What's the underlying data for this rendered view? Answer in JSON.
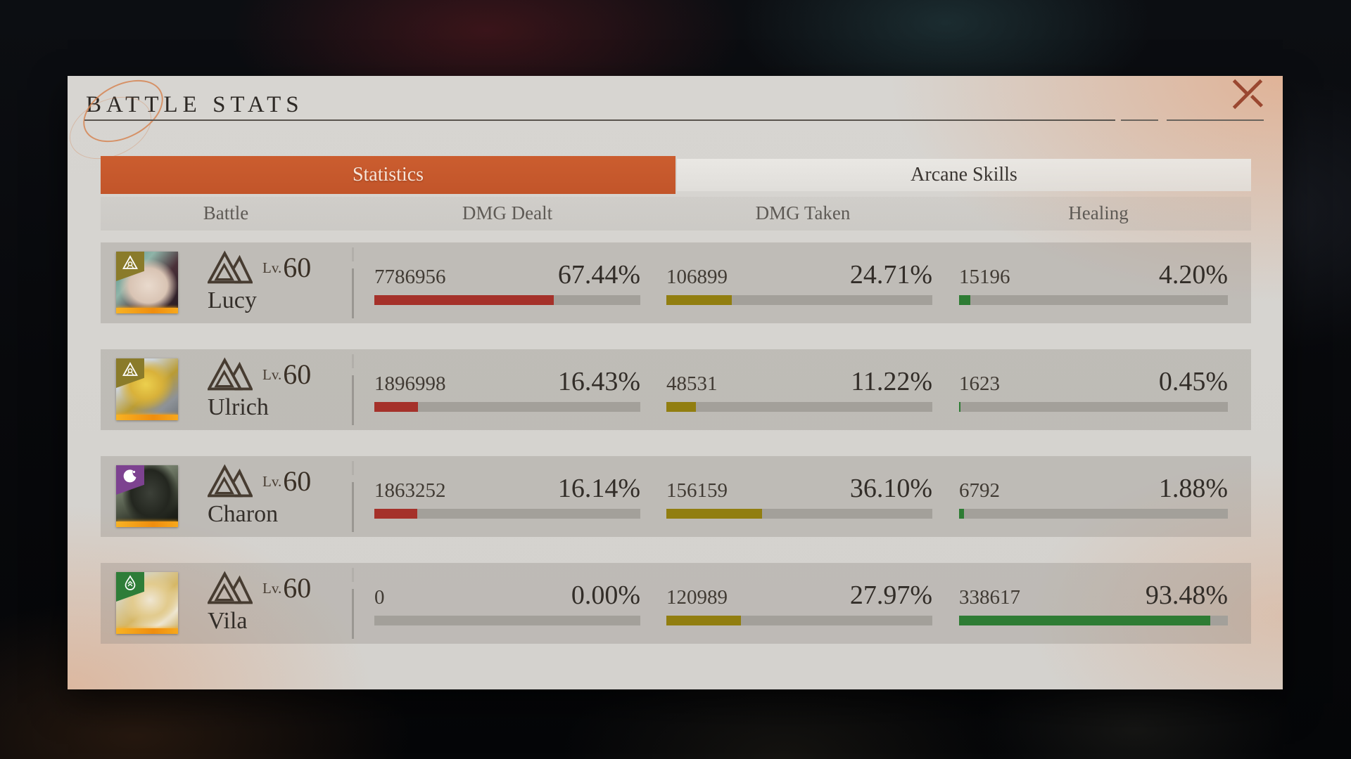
{
  "window": {
    "title": "BATTLE STATS"
  },
  "tabs": [
    {
      "label": "Statistics",
      "active": true
    },
    {
      "label": "Arcane Skills",
      "active": false
    }
  ],
  "columns": [
    "Battle",
    "DMG Dealt",
    "DMG Taken",
    "Healing"
  ],
  "stats_colors": {
    "dmg_dealt": "#a5312a",
    "dmg_taken": "#917e10",
    "healing": "#2e7c34",
    "bar_track": "#a3a09a",
    "tab_active": "#c75a2c",
    "close_icon": "#9a4730"
  },
  "rows": [
    {
      "name": "Lucy",
      "level_label": "Lv.",
      "level": "60",
      "avatar": "lucy",
      "element": {
        "icon": "delta",
        "color": "#8a7b2a"
      },
      "dmg_dealt": {
        "value": "7786956",
        "pct": "67.44%",
        "pct_num": 67.44
      },
      "dmg_taken": {
        "value": "106899",
        "pct": "24.71%",
        "pct_num": 24.71
      },
      "healing": {
        "value": "15196",
        "pct": "4.20%",
        "pct_num": 4.2
      }
    },
    {
      "name": "Ulrich",
      "level_label": "Lv.",
      "level": "60",
      "avatar": "ulrich",
      "element": {
        "icon": "delta",
        "color": "#8a7b2a"
      },
      "dmg_dealt": {
        "value": "1896998",
        "pct": "16.43%",
        "pct_num": 16.43
      },
      "dmg_taken": {
        "value": "48531",
        "pct": "11.22%",
        "pct_num": 11.22
      },
      "healing": {
        "value": "1623",
        "pct": "0.45%",
        "pct_num": 0.45
      }
    },
    {
      "name": "Charon",
      "level_label": "Lv.",
      "level": "60",
      "avatar": "charon",
      "element": {
        "icon": "lunar",
        "color": "#7d4290"
      },
      "dmg_dealt": {
        "value": "1863252",
        "pct": "16.14%",
        "pct_num": 16.14
      },
      "dmg_taken": {
        "value": "156159",
        "pct": "36.10%",
        "pct_num": 36.1
      },
      "healing": {
        "value": "6792",
        "pct": "1.88%",
        "pct_num": 1.88
      }
    },
    {
      "name": "Vila",
      "level_label": "Lv.",
      "level": "60",
      "avatar": "vila",
      "element": {
        "icon": "verdant",
        "color": "#2e7d38"
      },
      "dmg_dealt": {
        "value": "0",
        "pct": "0.00%",
        "pct_num": 0.0
      },
      "dmg_taken": {
        "value": "120989",
        "pct": "27.97%",
        "pct_num": 27.97
      },
      "healing": {
        "value": "338617",
        "pct": "93.48%",
        "pct_num": 93.48
      }
    }
  ]
}
